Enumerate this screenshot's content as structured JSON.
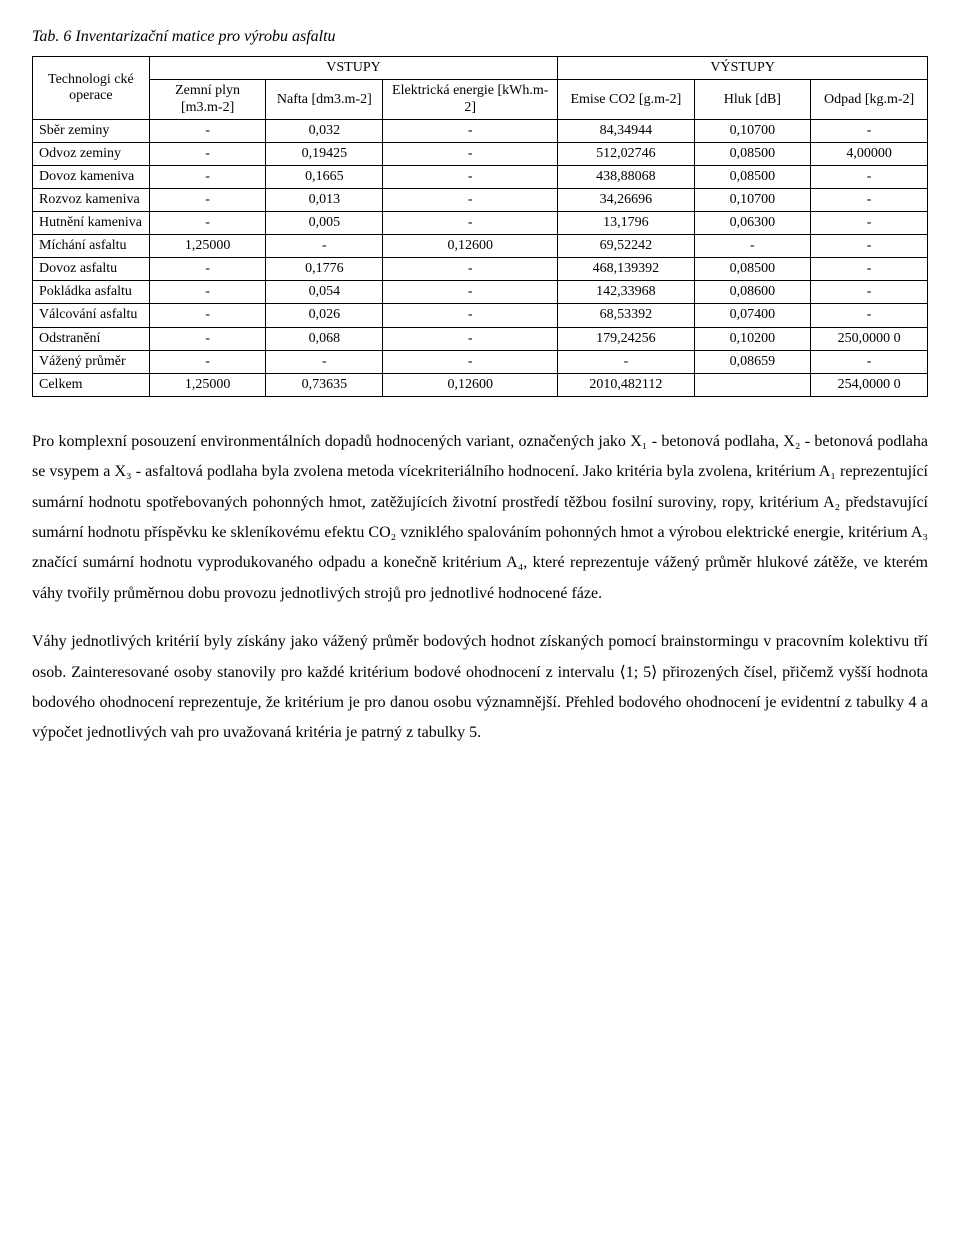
{
  "caption": "Tab. 6 Inventarizační matice pro výrobu asfaltu",
  "table": {
    "rowHeaderLabel": "Technologi cké operace",
    "groupHeaders": {
      "inputs": "VSTUPY",
      "outputs": "VÝSTUPY"
    },
    "columns": [
      "Zemní plyn [m3.m-2]",
      "Nafta [dm3.m-2]",
      "Elektrická energie [kWh.m-2]",
      "Emise CO2 [g.m-2]",
      "Hluk [dB]",
      "Odpad [kg.m-2]"
    ],
    "colWidths": [
      "12%",
      "12%",
      "12%",
      "18%",
      "14%",
      "12%",
      "12%"
    ],
    "rows": [
      {
        "label": "Sběr zeminy",
        "cells": [
          "-",
          "0,032",
          "-",
          "84,34944",
          "0,10700",
          "-"
        ]
      },
      {
        "label": "Odvoz zeminy",
        "cells": [
          "-",
          "0,19425",
          "-",
          "512,02746",
          "0,08500",
          "4,00000"
        ]
      },
      {
        "label": "Dovoz kameniva",
        "cells": [
          "-",
          "0,1665",
          "-",
          "438,88068",
          "0,08500",
          "-"
        ]
      },
      {
        "label": "Rozvoz kameniva",
        "cells": [
          "-",
          "0,013",
          "-",
          "34,26696",
          "0,10700",
          "-"
        ]
      },
      {
        "label": "Hutnění kameniva",
        "cells": [
          "-",
          "0,005",
          "-",
          "13,1796",
          "0,06300",
          "-"
        ]
      },
      {
        "label": "Míchání asfaltu",
        "cells": [
          "1,25000",
          "-",
          "0,12600",
          "69,52242",
          "-",
          "-"
        ]
      },
      {
        "label": "Dovoz asfaltu",
        "cells": [
          "-",
          "0,1776",
          "-",
          "468,139392",
          "0,08500",
          "-"
        ]
      },
      {
        "label": "Pokládka asfaltu",
        "cells": [
          "-",
          "0,054",
          "-",
          "142,33968",
          "0,08600",
          "-"
        ]
      },
      {
        "label": "Válcování asfaltu",
        "cells": [
          "-",
          "0,026",
          "-",
          "68,53392",
          "0,07400",
          "-"
        ]
      },
      {
        "label": "Odstranění",
        "cells": [
          "-",
          "0,068",
          "-",
          "179,24256",
          "0,10200",
          "250,0000 0"
        ]
      },
      {
        "label": "Vážený průměr",
        "cells": [
          "-",
          "-",
          "-",
          "-",
          "0,08659",
          "-"
        ]
      },
      {
        "label": "Celkem",
        "cells": [
          "1,25000",
          "0,73635",
          "0,12600",
          "2010,482112",
          "",
          "254,0000 0"
        ]
      }
    ]
  },
  "paragraphs": {
    "p1": "Pro komplexní posouzení environmentálních dopadů hodnocených variant, označených jako X₁ - betonová podlaha, X₂ - betonová podlaha se vsypem a X₃ - asfaltová podlaha byla zvolena metoda vícekriteriálního hodnocení. Jako kritéria byla zvolena, kritérium A₁ reprezentující sumární hodnotu spotřebovaných pohonných hmot, zatěžujících životní prostředí těžbou fosilní suroviny, ropy, kritérium A₂ představující sumární hodnotu příspěvku ke skleníkovému efektu CO₂ vzniklého spalováním pohonných hmot a výrobou elektrické energie, kritérium A₃ značící sumární hodnotu vyprodukovaného odpadu a konečně kritérium A₄, které reprezentuje vážený průměr hlukové zátěže, ve kterém váhy tvořily průměrnou dobu provozu jednotlivých strojů pro jednotlivé hodnocené fáze.",
    "p2": "Váhy jednotlivých kritérií byly získány jako vážený průměr bodových hodnot získaných pomocí brainstormingu v pracovním kolektivu tří osob. Zainteresované osoby stanovily pro každé kritérium bodové ohodnocení z intervalu ⟨1; 5⟩ přirozených čísel, přičemž vyšší hodnota bodového ohodnocení reprezentuje, že kritérium je pro danou osobu významnější. Přehled bodového ohodnocení je evidentní z tabulky 4 a výpočet jednotlivých vah pro uvažovaná kritéria je patrný z tabulky 5."
  }
}
